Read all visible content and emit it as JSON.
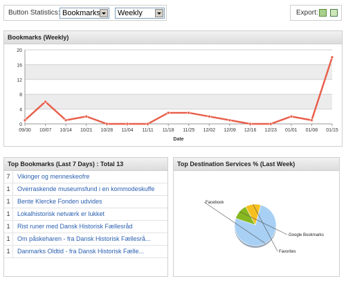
{
  "controls": {
    "label": "Button Statistics:",
    "metric_select": "Bookmarks",
    "period_select": "Weekly",
    "export_label": "Export:",
    "export_icons": [
      "excel-icon",
      "csv-icon"
    ]
  },
  "chart_panel": {
    "title": "Bookmarks (Weekly)"
  },
  "chart_data": {
    "type": "line",
    "xlabel": "Date",
    "ylabel": "",
    "ylim": [
      0,
      20
    ],
    "yticks": [
      0,
      4,
      8,
      12,
      16,
      20
    ],
    "categories": [
      "09/30",
      "10/07",
      "10/14",
      "10/21",
      "10/28",
      "11/04",
      "11/11",
      "11/18",
      "11/25",
      "12/02",
      "12/09",
      "12/16",
      "12/23",
      "01/01",
      "01/08",
      "01/15"
    ],
    "series": [
      {
        "values": [
          1,
          6,
          1,
          2,
          0,
          0,
          0,
          3,
          3,
          2,
          1,
          0,
          0,
          2,
          1,
          18
        ]
      }
    ],
    "colors": {
      "line": "#e8604c",
      "band": "#ececec",
      "grid": "#d0d0d0"
    }
  },
  "bookmarks_panel": {
    "title": "Top Bookmarks (Last 7 Days) : Total 13",
    "rows": [
      {
        "count": "7",
        "name": "Vikinger og menneskeofre"
      },
      {
        "count": "1",
        "name": "Overraskende museumsfund i en kommodeskuffe"
      },
      {
        "count": "1",
        "name": "Bente Klercke Fonden udvides"
      },
      {
        "count": "1",
        "name": "Lokalhistorisk netværk er lukket"
      },
      {
        "count": "1",
        "name": "Rist runer med Dansk Historisk Fællesråd"
      },
      {
        "count": "1",
        "name": "Om påskeharen - fra Dansk Historisk Fællesrå..."
      },
      {
        "count": "1",
        "name": "Danmarks Oldtid -  fra Dansk Historisk Fælle..."
      }
    ]
  },
  "services_panel": {
    "title": "Top Destination Services % (Last Week)",
    "pie": {
      "slices": [
        {
          "label": "Facebook",
          "value": 76,
          "color": "#a8d0f5"
        },
        {
          "label": "Google Bookmarks",
          "value": 12,
          "color": "#88b820"
        },
        {
          "label": "Favorites",
          "value": 12,
          "color": "#f5c020"
        }
      ]
    }
  }
}
